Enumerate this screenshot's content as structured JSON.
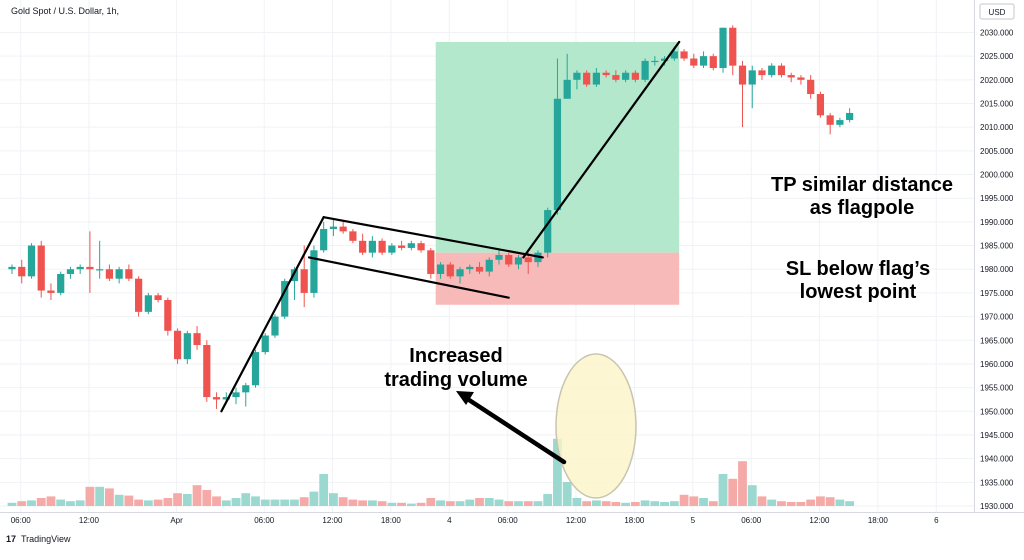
{
  "header": {
    "title": "Gold Spot / U.S. Dollar, 1h,",
    "currency_badge": "USD"
  },
  "footer": {
    "logo_mark": "17",
    "brand": "TradingView"
  },
  "annotations": {
    "tp_line1": "TP similar distance",
    "tp_line2": "as flagpole",
    "sl_line1": "SL below flag’s",
    "sl_line2": "lowest point",
    "vol_line1": "Increased",
    "vol_line2": "trading volume"
  },
  "colors": {
    "up": "#26a69a",
    "down": "#ef5350",
    "tp_zone": "#b3e8cc",
    "sl_zone": "#f8b9b9",
    "highlight": "#fdf3c7",
    "annotation_line": "#000000"
  },
  "chart_data": {
    "type": "candlestick",
    "symbol": "Gold Spot / U.S. Dollar",
    "timeframe": "1h",
    "ylim": [
      1930,
      2032
    ],
    "y_ticks": [
      "2030.000",
      "2025.000",
      "2020.000",
      "2015.000",
      "2010.000",
      "2005.000",
      "2000.000",
      "1995.000",
      "1990.000",
      "1985.000",
      "1980.000",
      "1975.000",
      "1970.000",
      "1965.000",
      "1960.000",
      "1955.000",
      "1950.000",
      "1945.000",
      "1940.000",
      "1935.000",
      "1930.000"
    ],
    "x_ticks": [
      "06:00",
      "12:00",
      "Apr",
      "06:00",
      "12:00",
      "18:00",
      "4",
      "06:00",
      "12:00",
      "18:00",
      "5",
      "06:00",
      "12:00",
      "18:00",
      "6"
    ],
    "candles": [
      {
        "o": 1980,
        "h": 1981,
        "l": 1979,
        "c": 1980.5,
        "v": 0.2
      },
      {
        "o": 1980.5,
        "h": 1982,
        "l": 1977,
        "c": 1978.5,
        "v": 0.3
      },
      {
        "o": 1978.5,
        "h": 1985.5,
        "l": 1978,
        "c": 1985,
        "v": 0.35
      },
      {
        "o": 1985,
        "h": 1986,
        "l": 1974,
        "c": 1975.5,
        "v": 0.5
      },
      {
        "o": 1975.5,
        "h": 1977,
        "l": 1973.5,
        "c": 1975,
        "v": 0.6
      },
      {
        "o": 1975,
        "h": 1979.5,
        "l": 1974.5,
        "c": 1979,
        "v": 0.4
      },
      {
        "o": 1979,
        "h": 1980.5,
        "l": 1978,
        "c": 1980,
        "v": 0.3
      },
      {
        "o": 1980,
        "h": 1981,
        "l": 1979,
        "c": 1980.5,
        "v": 0.35
      },
      {
        "o": 1980.5,
        "h": 1988,
        "l": 1975,
        "c": 1980,
        "v": 1.2
      },
      {
        "o": 1980,
        "h": 1986,
        "l": 1978,
        "c": 1980,
        "v": 1.2
      },
      {
        "o": 1980,
        "h": 1981,
        "l": 1977.5,
        "c": 1978,
        "v": 1.1
      },
      {
        "o": 1978,
        "h": 1980.5,
        "l": 1977,
        "c": 1980,
        "v": 0.7
      },
      {
        "o": 1980,
        "h": 1981,
        "l": 1977.5,
        "c": 1978,
        "v": 0.65
      },
      {
        "o": 1978,
        "h": 1978.5,
        "l": 1970,
        "c": 1971,
        "v": 0.4
      },
      {
        "o": 1971,
        "h": 1975,
        "l": 1970.5,
        "c": 1974.5,
        "v": 0.35
      },
      {
        "o": 1974.5,
        "h": 1975,
        "l": 1973,
        "c": 1973.5,
        "v": 0.4
      },
      {
        "o": 1973.5,
        "h": 1974,
        "l": 1966,
        "c": 1967,
        "v": 0.5
      },
      {
        "o": 1967,
        "h": 1967.5,
        "l": 1960,
        "c": 1961,
        "v": 0.8
      },
      {
        "o": 1961,
        "h": 1967,
        "l": 1960,
        "c": 1966.5,
        "v": 0.75
      },
      {
        "o": 1966.5,
        "h": 1968,
        "l": 1963,
        "c": 1964,
        "v": 1.3
      },
      {
        "o": 1964,
        "h": 1965,
        "l": 1952,
        "c": 1953,
        "v": 1.0
      },
      {
        "o": 1953,
        "h": 1954,
        "l": 1950.5,
        "c": 1952.5,
        "v": 0.6
      },
      {
        "o": 1952.5,
        "h": 1954,
        "l": 1952,
        "c": 1953,
        "v": 0.35
      },
      {
        "o": 1953,
        "h": 1955,
        "l": 1951.5,
        "c": 1954,
        "v": 0.5
      },
      {
        "o": 1954,
        "h": 1956,
        "l": 1951,
        "c": 1955.5,
        "v": 0.8
      },
      {
        "o": 1955.5,
        "h": 1963,
        "l": 1955,
        "c": 1962.5,
        "v": 0.6
      },
      {
        "o": 1962.5,
        "h": 1966.5,
        "l": 1962,
        "c": 1966,
        "v": 0.4
      },
      {
        "o": 1966,
        "h": 1970.5,
        "l": 1965.5,
        "c": 1970,
        "v": 0.4
      },
      {
        "o": 1970,
        "h": 1978,
        "l": 1969.5,
        "c": 1977.5,
        "v": 0.4
      },
      {
        "o": 1977.5,
        "h": 1980.5,
        "l": 1973.5,
        "c": 1980,
        "v": 0.4
      },
      {
        "o": 1980,
        "h": 1985,
        "l": 1972,
        "c": 1975,
        "v": 0.55
      },
      {
        "o": 1975,
        "h": 1985,
        "l": 1974,
        "c": 1984,
        "v": 0.9
      },
      {
        "o": 1984,
        "h": 1990,
        "l": 1983.5,
        "c": 1988.5,
        "v": 2.0
      },
      {
        "o": 1988.5,
        "h": 1990.5,
        "l": 1987,
        "c": 1989,
        "v": 0.8
      },
      {
        "o": 1989,
        "h": 1990,
        "l": 1987.5,
        "c": 1988,
        "v": 0.55
      },
      {
        "o": 1988,
        "h": 1988.5,
        "l": 1985.5,
        "c": 1986,
        "v": 0.4
      },
      {
        "o": 1986,
        "h": 1987.5,
        "l": 1983,
        "c": 1983.5,
        "v": 0.35
      },
      {
        "o": 1983.5,
        "h": 1987,
        "l": 1982.5,
        "c": 1986,
        "v": 0.35
      },
      {
        "o": 1986,
        "h": 1986.5,
        "l": 1983,
        "c": 1983.5,
        "v": 0.3
      },
      {
        "o": 1983.5,
        "h": 1985.5,
        "l": 1983,
        "c": 1985,
        "v": 0.2
      },
      {
        "o": 1985,
        "h": 1986,
        "l": 1984,
        "c": 1984.5,
        "v": 0.2
      },
      {
        "o": 1984.5,
        "h": 1986,
        "l": 1984,
        "c": 1985.5,
        "v": 0.15
      },
      {
        "o": 1985.5,
        "h": 1986,
        "l": 1983.5,
        "c": 1984,
        "v": 0.2
      },
      {
        "o": 1984,
        "h": 1984.5,
        "l": 1978,
        "c": 1979,
        "v": 0.5
      },
      {
        "o": 1979,
        "h": 1981.5,
        "l": 1978,
        "c": 1981,
        "v": 0.35
      },
      {
        "o": 1981,
        "h": 1981.5,
        "l": 1978,
        "c": 1978.5,
        "v": 0.3
      },
      {
        "o": 1978.5,
        "h": 1980.5,
        "l": 1977,
        "c": 1980,
        "v": 0.3
      },
      {
        "o": 1980,
        "h": 1981,
        "l": 1979,
        "c": 1980.5,
        "v": 0.4
      },
      {
        "o": 1980.5,
        "h": 1981.5,
        "l": 1979,
        "c": 1979.5,
        "v": 0.5
      },
      {
        "o": 1979.5,
        "h": 1982.5,
        "l": 1978.5,
        "c": 1982,
        "v": 0.5
      },
      {
        "o": 1982,
        "h": 1984,
        "l": 1981,
        "c": 1983,
        "v": 0.4
      },
      {
        "o": 1983,
        "h": 1983.5,
        "l": 1980.5,
        "c": 1981,
        "v": 0.3
      },
      {
        "o": 1981,
        "h": 1983,
        "l": 1980,
        "c": 1982.5,
        "v": 0.3
      },
      {
        "o": 1982.5,
        "h": 1983.5,
        "l": 1979,
        "c": 1981.5,
        "v": 0.3
      },
      {
        "o": 1981.5,
        "h": 1984,
        "l": 1980.5,
        "c": 1983.5,
        "v": 0.3
      },
      {
        "o": 1983.5,
        "h": 1993,
        "l": 1982.5,
        "c": 1992.5,
        "v": 0.75
      },
      {
        "o": 1992.5,
        "h": 2024.5,
        "l": 1991.5,
        "c": 2016,
        "v": 4.2
      },
      {
        "o": 2016,
        "h": 2025.5,
        "l": 2016,
        "c": 2020,
        "v": 1.5
      },
      {
        "o": 2020,
        "h": 2022,
        "l": 2018,
        "c": 2021.5,
        "v": 0.5
      },
      {
        "o": 2021.5,
        "h": 2022,
        "l": 2018.5,
        "c": 2019,
        "v": 0.3
      },
      {
        "o": 2019,
        "h": 2022.5,
        "l": 2018.5,
        "c": 2021.5,
        "v": 0.35
      },
      {
        "o": 2021.5,
        "h": 2022,
        "l": 2020.5,
        "c": 2021,
        "v": 0.3
      },
      {
        "o": 2021,
        "h": 2022,
        "l": 2019.5,
        "c": 2020,
        "v": 0.25
      },
      {
        "o": 2020,
        "h": 2022,
        "l": 2019.5,
        "c": 2021.5,
        "v": 0.2
      },
      {
        "o": 2021.5,
        "h": 2022,
        "l": 2019.5,
        "c": 2020,
        "v": 0.25
      },
      {
        "o": 2020,
        "h": 2024.5,
        "l": 2019.5,
        "c": 2024,
        "v": 0.35
      },
      {
        "o": 2024,
        "h": 2025,
        "l": 2023,
        "c": 2024,
        "v": 0.3
      },
      {
        "o": 2024,
        "h": 2025,
        "l": 2023,
        "c": 2024.5,
        "v": 0.25
      },
      {
        "o": 2024.5,
        "h": 2027,
        "l": 2024,
        "c": 2026,
        "v": 0.3
      },
      {
        "o": 2026,
        "h": 2026.5,
        "l": 2024,
        "c": 2024.5,
        "v": 0.7
      },
      {
        "o": 2024.5,
        "h": 2025.5,
        "l": 2022.5,
        "c": 2023,
        "v": 0.6
      },
      {
        "o": 2023,
        "h": 2026,
        "l": 2022.5,
        "c": 2025,
        "v": 0.5
      },
      {
        "o": 2025,
        "h": 2025.5,
        "l": 2022,
        "c": 2022.5,
        "v": 0.3
      },
      {
        "o": 2022.5,
        "h": 2031,
        "l": 2021.5,
        "c": 2031,
        "v": 2.0
      },
      {
        "o": 2031,
        "h": 2031.5,
        "l": 2021,
        "c": 2023,
        "v": 1.7
      },
      {
        "o": 2023,
        "h": 2024,
        "l": 2010,
        "c": 2019,
        "v": 2.8
      },
      {
        "o": 2019,
        "h": 2023,
        "l": 2014,
        "c": 2022,
        "v": 1.3
      },
      {
        "o": 2022,
        "h": 2022.5,
        "l": 2020,
        "c": 2021,
        "v": 0.6
      },
      {
        "o": 2021,
        "h": 2023.5,
        "l": 2020.5,
        "c": 2023,
        "v": 0.4
      },
      {
        "o": 2023,
        "h": 2023.5,
        "l": 2020.5,
        "c": 2021,
        "v": 0.3
      },
      {
        "o": 2021,
        "h": 2021.5,
        "l": 2019.5,
        "c": 2020.5,
        "v": 0.25
      },
      {
        "o": 2020.5,
        "h": 2021,
        "l": 2019,
        "c": 2020,
        "v": 0.25
      },
      {
        "o": 2020,
        "h": 2021,
        "l": 2016,
        "c": 2017,
        "v": 0.4
      },
      {
        "o": 2017,
        "h": 2017.5,
        "l": 2012,
        "c": 2012.5,
        "v": 0.6
      },
      {
        "o": 2012.5,
        "h": 2013,
        "l": 2008.5,
        "c": 2010.5,
        "v": 0.55
      },
      {
        "o": 2010.5,
        "h": 2012,
        "l": 2010,
        "c": 2011.5,
        "v": 0.4
      },
      {
        "o": 2011.5,
        "h": 2014,
        "l": 2011,
        "c": 2013,
        "v": 0.3
      }
    ],
    "drawings": {
      "flagpole_start": [
        21.5,
        1950
      ],
      "flagpole_end": [
        32,
        1991
      ],
      "flag_upper_start": [
        32,
        1991
      ],
      "flag_upper_end": [
        54.5,
        1982.5
      ],
      "flag_lower_start": [
        30.5,
        1982.5
      ],
      "flag_lower_end": [
        51,
        1974
      ],
      "target_start": [
        52.5,
        1982.5
      ],
      "target_end": [
        68.5,
        2028
      ],
      "tp_zone": {
        "x_from": 43.5,
        "x_to": 68.5,
        "y_from": 1983.5,
        "y_to": 2028
      },
      "sl_zone": {
        "x_from": 43.5,
        "x_to": 68.5,
        "y_from": 1972.5,
        "y_to": 1983.5
      }
    }
  }
}
